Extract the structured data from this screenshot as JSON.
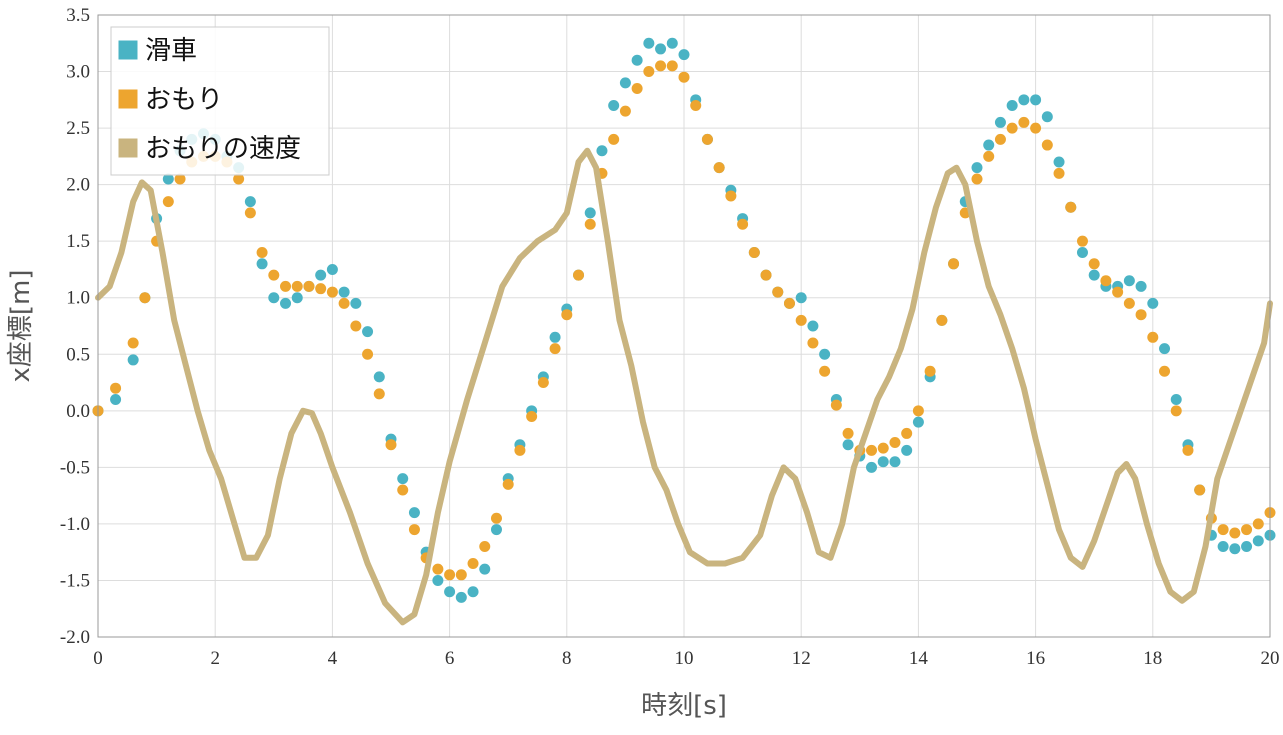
{
  "chart_data": {
    "type": "scatter",
    "xlabel": "時刻[s]",
    "ylabel": "x座標[m]",
    "xlim": [
      0,
      20
    ],
    "ylim": [
      -2.0,
      3.5
    ],
    "xticks": [
      "0",
      "2",
      "4",
      "6",
      "8",
      "10",
      "12",
      "14",
      "16",
      "18",
      "20"
    ],
    "yticks": [
      "3.5",
      "3.0",
      "2.5",
      "2.0",
      "1.5",
      "1.0",
      "0.5",
      "0.0",
      "-0.5",
      "-1.0",
      "-1.5",
      "-2.0"
    ],
    "grid": true,
    "legend_position": "top-left",
    "series": [
      {
        "name": "滑車",
        "kind": "markers",
        "color": "#4ab3c4",
        "points": [
          [
            0,
            0
          ],
          [
            0.3,
            0.1
          ],
          [
            0.6,
            0.45
          ],
          [
            0.8,
            1.0
          ],
          [
            1.0,
            1.7
          ],
          [
            1.2,
            2.05
          ],
          [
            1.4,
            2.3
          ],
          [
            1.6,
            2.4
          ],
          [
            1.8,
            2.45
          ],
          [
            2.0,
            2.4
          ],
          [
            2.2,
            2.25
          ],
          [
            2.4,
            2.15
          ],
          [
            2.6,
            1.85
          ],
          [
            2.8,
            1.3
          ],
          [
            3.0,
            1.0
          ],
          [
            3.2,
            0.95
          ],
          [
            3.4,
            1.0
          ],
          [
            3.6,
            1.1
          ],
          [
            3.8,
            1.2
          ],
          [
            4.0,
            1.25
          ],
          [
            4.2,
            1.05
          ],
          [
            4.4,
            0.95
          ],
          [
            4.6,
            0.7
          ],
          [
            4.8,
            0.3
          ],
          [
            5.0,
            -0.25
          ],
          [
            5.2,
            -0.6
          ],
          [
            5.4,
            -0.9
          ],
          [
            5.6,
            -1.25
          ],
          [
            5.8,
            -1.5
          ],
          [
            6.0,
            -1.6
          ],
          [
            6.2,
            -1.65
          ],
          [
            6.4,
            -1.6
          ],
          [
            6.6,
            -1.4
          ],
          [
            6.8,
            -1.05
          ],
          [
            7.0,
            -0.6
          ],
          [
            7.2,
            -0.3
          ],
          [
            7.4,
            0.0
          ],
          [
            7.6,
            0.3
          ],
          [
            7.8,
            0.65
          ],
          [
            8.0,
            0.9
          ],
          [
            8.2,
            1.2
          ],
          [
            8.4,
            1.75
          ],
          [
            8.6,
            2.3
          ],
          [
            8.8,
            2.7
          ],
          [
            9.0,
            2.9
          ],
          [
            9.2,
            3.1
          ],
          [
            9.4,
            3.25
          ],
          [
            9.6,
            3.2
          ],
          [
            9.8,
            3.25
          ],
          [
            10.0,
            3.15
          ],
          [
            10.2,
            2.75
          ],
          [
            10.4,
            2.4
          ],
          [
            10.6,
            2.15
          ],
          [
            10.8,
            1.95
          ],
          [
            11.0,
            1.7
          ],
          [
            11.2,
            1.4
          ],
          [
            11.4,
            1.2
          ],
          [
            11.6,
            1.05
          ],
          [
            11.8,
            0.95
          ],
          [
            12.0,
            1.0
          ],
          [
            12.2,
            0.75
          ],
          [
            12.4,
            0.5
          ],
          [
            12.6,
            0.1
          ],
          [
            12.8,
            -0.3
          ],
          [
            13.0,
            -0.4
          ],
          [
            13.2,
            -0.5
          ],
          [
            13.4,
            -0.45
          ],
          [
            13.6,
            -0.45
          ],
          [
            13.8,
            -0.35
          ],
          [
            14.0,
            -0.1
          ],
          [
            14.2,
            0.3
          ],
          [
            14.4,
            0.8
          ],
          [
            14.6,
            1.3
          ],
          [
            14.8,
            1.85
          ],
          [
            15.0,
            2.15
          ],
          [
            15.2,
            2.35
          ],
          [
            15.4,
            2.55
          ],
          [
            15.6,
            2.7
          ],
          [
            15.8,
            2.75
          ],
          [
            16.0,
            2.75
          ],
          [
            16.2,
            2.6
          ],
          [
            16.4,
            2.2
          ],
          [
            16.6,
            1.8
          ],
          [
            16.8,
            1.4
          ],
          [
            17.0,
            1.2
          ],
          [
            17.2,
            1.1
          ],
          [
            17.4,
            1.1
          ],
          [
            17.6,
            1.15
          ],
          [
            17.8,
            1.1
          ],
          [
            18.0,
            0.95
          ],
          [
            18.2,
            0.55
          ],
          [
            18.4,
            0.1
          ],
          [
            18.6,
            -0.3
          ],
          [
            18.8,
            -0.7
          ],
          [
            19.0,
            -1.1
          ],
          [
            19.2,
            -1.2
          ],
          [
            19.4,
            -1.22
          ],
          [
            19.6,
            -1.2
          ],
          [
            19.8,
            -1.15
          ],
          [
            20.0,
            -1.1
          ]
        ]
      },
      {
        "name": "おもり",
        "kind": "markers",
        "color": "#eda52f",
        "points": [
          [
            0,
            0
          ],
          [
            0.3,
            0.2
          ],
          [
            0.6,
            0.6
          ],
          [
            0.8,
            1.0
          ],
          [
            1.0,
            1.5
          ],
          [
            1.2,
            1.85
          ],
          [
            1.4,
            2.05
          ],
          [
            1.6,
            2.2
          ],
          [
            1.8,
            2.25
          ],
          [
            2.0,
            2.25
          ],
          [
            2.2,
            2.2
          ],
          [
            2.4,
            2.05
          ],
          [
            2.6,
            1.75
          ],
          [
            2.8,
            1.4
          ],
          [
            3.0,
            1.2
          ],
          [
            3.2,
            1.1
          ],
          [
            3.4,
            1.1
          ],
          [
            3.6,
            1.1
          ],
          [
            3.8,
            1.08
          ],
          [
            4.0,
            1.05
          ],
          [
            4.2,
            0.95
          ],
          [
            4.4,
            0.75
          ],
          [
            4.6,
            0.5
          ],
          [
            4.8,
            0.15
          ],
          [
            5.0,
            -0.3
          ],
          [
            5.2,
            -0.7
          ],
          [
            5.4,
            -1.05
          ],
          [
            5.6,
            -1.3
          ],
          [
            5.8,
            -1.4
          ],
          [
            6.0,
            -1.45
          ],
          [
            6.2,
            -1.45
          ],
          [
            6.4,
            -1.35
          ],
          [
            6.6,
            -1.2
          ],
          [
            6.8,
            -0.95
          ],
          [
            7.0,
            -0.65
          ],
          [
            7.2,
            -0.35
          ],
          [
            7.4,
            -0.05
          ],
          [
            7.6,
            0.25
          ],
          [
            7.8,
            0.55
          ],
          [
            8.0,
            0.85
          ],
          [
            8.2,
            1.2
          ],
          [
            8.4,
            1.65
          ],
          [
            8.6,
            2.1
          ],
          [
            8.8,
            2.4
          ],
          [
            9.0,
            2.65
          ],
          [
            9.2,
            2.85
          ],
          [
            9.4,
            3.0
          ],
          [
            9.6,
            3.05
          ],
          [
            9.8,
            3.05
          ],
          [
            10.0,
            2.95
          ],
          [
            10.2,
            2.7
          ],
          [
            10.4,
            2.4
          ],
          [
            10.6,
            2.15
          ],
          [
            10.8,
            1.9
          ],
          [
            11.0,
            1.65
          ],
          [
            11.2,
            1.4
          ],
          [
            11.4,
            1.2
          ],
          [
            11.6,
            1.05
          ],
          [
            11.8,
            0.95
          ],
          [
            12.0,
            0.8
          ],
          [
            12.2,
            0.6
          ],
          [
            12.4,
            0.35
          ],
          [
            12.6,
            0.05
          ],
          [
            12.8,
            -0.2
          ],
          [
            13.0,
            -0.35
          ],
          [
            13.2,
            -0.35
          ],
          [
            13.4,
            -0.33
          ],
          [
            13.6,
            -0.28
          ],
          [
            13.8,
            -0.2
          ],
          [
            14.0,
            0.0
          ],
          [
            14.2,
            0.35
          ],
          [
            14.4,
            0.8
          ],
          [
            14.6,
            1.3
          ],
          [
            14.8,
            1.75
          ],
          [
            15.0,
            2.05
          ],
          [
            15.2,
            2.25
          ],
          [
            15.4,
            2.4
          ],
          [
            15.6,
            2.5
          ],
          [
            15.8,
            2.55
          ],
          [
            16.0,
            2.5
          ],
          [
            16.2,
            2.35
          ],
          [
            16.4,
            2.1
          ],
          [
            16.6,
            1.8
          ],
          [
            16.8,
            1.5
          ],
          [
            17.0,
            1.3
          ],
          [
            17.2,
            1.15
          ],
          [
            17.4,
            1.05
          ],
          [
            17.6,
            0.95
          ],
          [
            17.8,
            0.85
          ],
          [
            18.0,
            0.65
          ],
          [
            18.2,
            0.35
          ],
          [
            18.4,
            0.0
          ],
          [
            18.6,
            -0.35
          ],
          [
            18.8,
            -0.7
          ],
          [
            19.0,
            -0.95
          ],
          [
            19.2,
            -1.05
          ],
          [
            19.4,
            -1.08
          ],
          [
            19.6,
            -1.05
          ],
          [
            19.8,
            -1.0
          ],
          [
            20.0,
            -0.9
          ]
        ]
      },
      {
        "name": "おもりの速度",
        "kind": "line",
        "color": "#c9b47f",
        "points": [
          [
            0,
            1.0
          ],
          [
            0.2,
            1.1
          ],
          [
            0.4,
            1.4
          ],
          [
            0.6,
            1.85
          ],
          [
            0.75,
            2.02
          ],
          [
            0.9,
            1.95
          ],
          [
            1.1,
            1.4
          ],
          [
            1.3,
            0.8
          ],
          [
            1.5,
            0.4
          ],
          [
            1.7,
            0.0
          ],
          [
            1.9,
            -0.35
          ],
          [
            2.1,
            -0.6
          ],
          [
            2.3,
            -0.95
          ],
          [
            2.5,
            -1.3
          ],
          [
            2.7,
            -1.3
          ],
          [
            2.9,
            -1.1
          ],
          [
            3.1,
            -0.6
          ],
          [
            3.3,
            -0.2
          ],
          [
            3.5,
            0.0
          ],
          [
            3.65,
            -0.02
          ],
          [
            3.8,
            -0.2
          ],
          [
            4.0,
            -0.5
          ],
          [
            4.3,
            -0.9
          ],
          [
            4.6,
            -1.35
          ],
          [
            4.9,
            -1.7
          ],
          [
            5.2,
            -1.87
          ],
          [
            5.4,
            -1.8
          ],
          [
            5.6,
            -1.45
          ],
          [
            5.8,
            -0.9
          ],
          [
            6.0,
            -0.45
          ],
          [
            6.3,
            0.1
          ],
          [
            6.6,
            0.6
          ],
          [
            6.9,
            1.1
          ],
          [
            7.2,
            1.35
          ],
          [
            7.5,
            1.5
          ],
          [
            7.8,
            1.6
          ],
          [
            8.0,
            1.75
          ],
          [
            8.2,
            2.2
          ],
          [
            8.35,
            2.3
          ],
          [
            8.5,
            2.15
          ],
          [
            8.7,
            1.5
          ],
          [
            8.9,
            0.8
          ],
          [
            9.1,
            0.4
          ],
          [
            9.3,
            -0.1
          ],
          [
            9.5,
            -0.5
          ],
          [
            9.7,
            -0.7
          ],
          [
            9.9,
            -1.0
          ],
          [
            10.1,
            -1.25
          ],
          [
            10.4,
            -1.35
          ],
          [
            10.7,
            -1.35
          ],
          [
            11.0,
            -1.3
          ],
          [
            11.3,
            -1.1
          ],
          [
            11.5,
            -0.75
          ],
          [
            11.7,
            -0.5
          ],
          [
            11.9,
            -0.6
          ],
          [
            12.1,
            -0.9
          ],
          [
            12.3,
            -1.25
          ],
          [
            12.5,
            -1.3
          ],
          [
            12.7,
            -1.0
          ],
          [
            12.9,
            -0.5
          ],
          [
            13.1,
            -0.2
          ],
          [
            13.3,
            0.1
          ],
          [
            13.5,
            0.3
          ],
          [
            13.7,
            0.55
          ],
          [
            13.9,
            0.9
          ],
          [
            14.1,
            1.4
          ],
          [
            14.3,
            1.8
          ],
          [
            14.5,
            2.1
          ],
          [
            14.65,
            2.15
          ],
          [
            14.8,
            2.0
          ],
          [
            15.0,
            1.5
          ],
          [
            15.2,
            1.1
          ],
          [
            15.4,
            0.85
          ],
          [
            15.6,
            0.55
          ],
          [
            15.8,
            0.2
          ],
          [
            16.0,
            -0.25
          ],
          [
            16.2,
            -0.65
          ],
          [
            16.4,
            -1.05
          ],
          [
            16.6,
            -1.3
          ],
          [
            16.8,
            -1.38
          ],
          [
            17.0,
            -1.15
          ],
          [
            17.2,
            -0.85
          ],
          [
            17.4,
            -0.55
          ],
          [
            17.55,
            -0.47
          ],
          [
            17.7,
            -0.6
          ],
          [
            17.9,
            -1.0
          ],
          [
            18.1,
            -1.35
          ],
          [
            18.3,
            -1.6
          ],
          [
            18.5,
            -1.68
          ],
          [
            18.7,
            -1.6
          ],
          [
            18.9,
            -1.2
          ],
          [
            19.1,
            -0.6
          ],
          [
            19.3,
            -0.3
          ],
          [
            19.5,
            0.0
          ],
          [
            19.7,
            0.3
          ],
          [
            19.9,
            0.6
          ],
          [
            20.0,
            0.95
          ]
        ]
      }
    ]
  }
}
